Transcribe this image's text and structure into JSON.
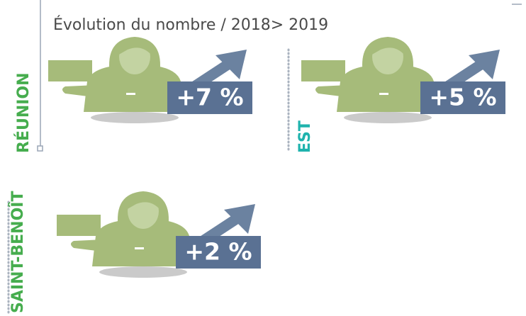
{
  "title": "Évolution du nombre / 2018> 2019",
  "panels": [
    {
      "label": "RÉUNION",
      "value": "+7 %"
    },
    {
      "label": "EST",
      "value": "+5 %"
    },
    {
      "label": "SAINT-BENOÎT",
      "value": "+2 %"
    }
  ]
}
